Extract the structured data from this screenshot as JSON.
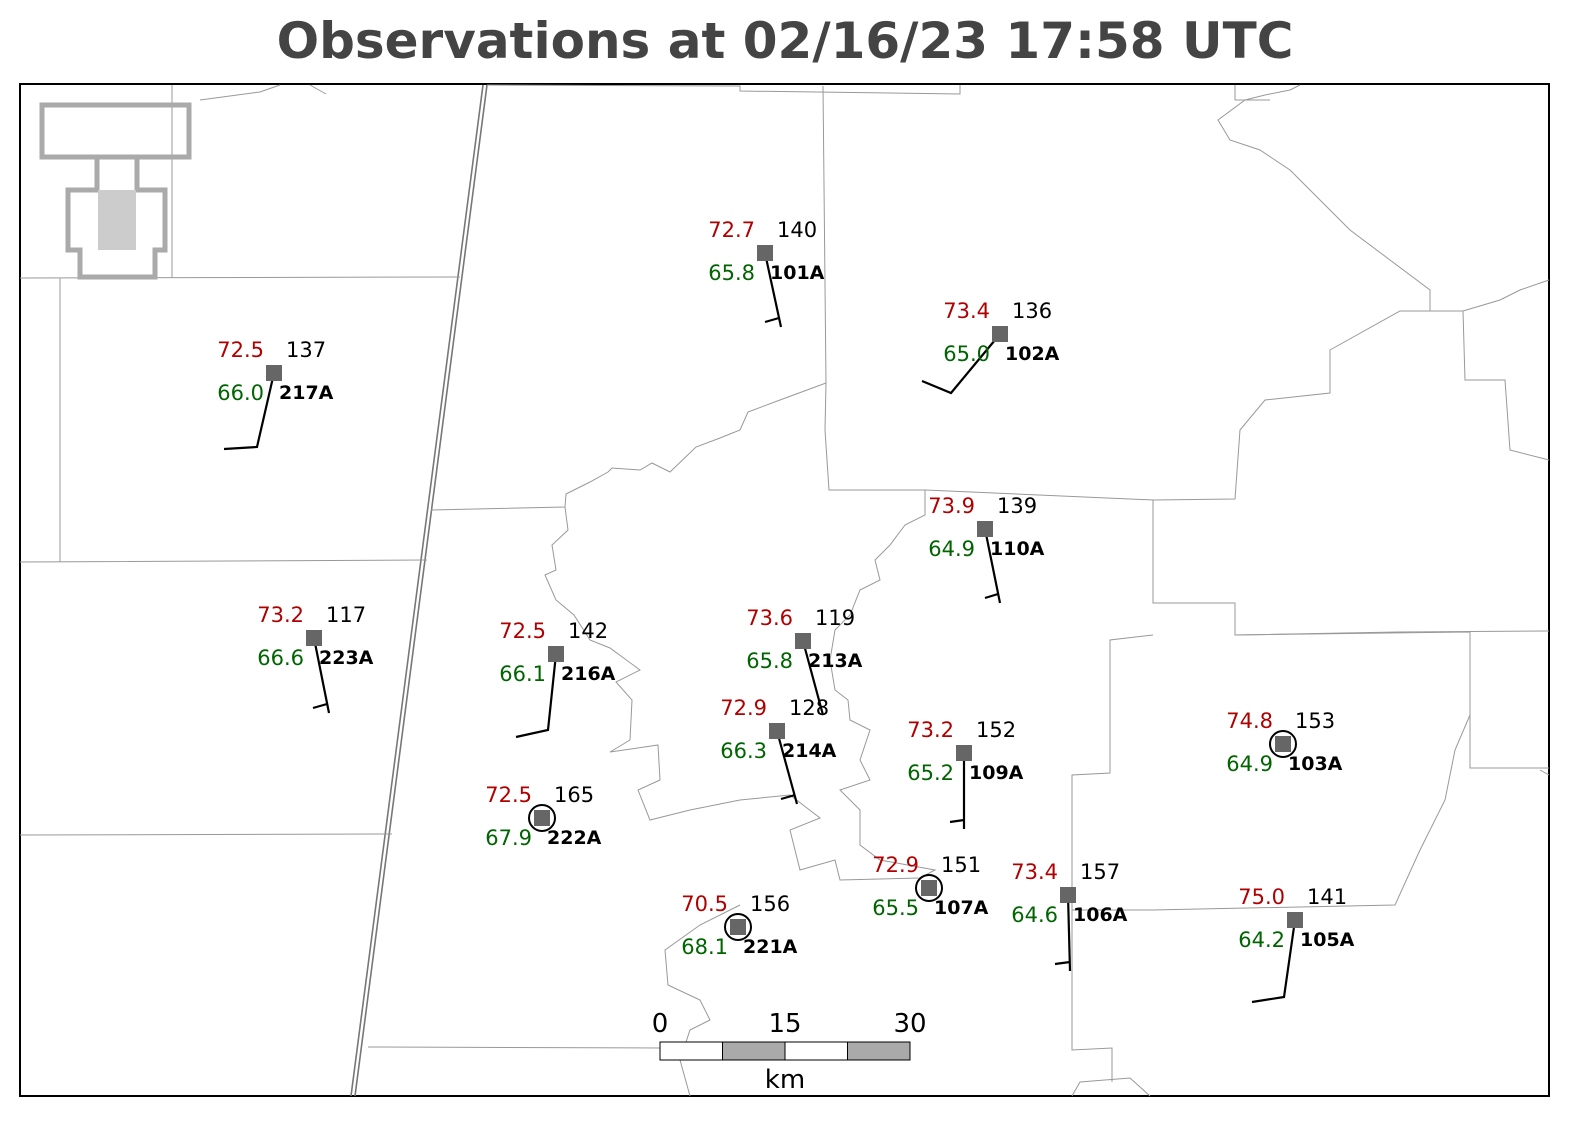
{
  "title": "Observations at 02/16/23 17:58 UTC",
  "stations": [
    {
      "temperature": "72.7",
      "dewpoint": "65.8",
      "pressure": "140",
      "id": "101A"
    },
    {
      "temperature": "73.4",
      "dewpoint": "65.0",
      "pressure": "136",
      "id": "102A"
    },
    {
      "temperature": "72.5",
      "dewpoint": "66.0",
      "pressure": "137",
      "id": "217A"
    },
    {
      "temperature": "73.9",
      "dewpoint": "64.9",
      "pressure": "139",
      "id": "110A"
    },
    {
      "temperature": "73.2",
      "dewpoint": "66.6",
      "pressure": "117",
      "id": "223A"
    },
    {
      "temperature": "72.5",
      "dewpoint": "66.1",
      "pressure": "142",
      "id": "216A"
    },
    {
      "temperature": "73.6",
      "dewpoint": "65.8",
      "pressure": "119",
      "id": "213A"
    },
    {
      "temperature": "72.9",
      "dewpoint": "66.3",
      "pressure": "128",
      "id": "214A"
    },
    {
      "temperature": "73.2",
      "dewpoint": "65.2",
      "pressure": "152",
      "id": "109A"
    },
    {
      "temperature": "74.8",
      "dewpoint": "64.9",
      "pressure": "153",
      "id": "103A"
    },
    {
      "temperature": "72.5",
      "dewpoint": "67.9",
      "pressure": "165",
      "id": "222A"
    },
    {
      "temperature": "72.9",
      "dewpoint": "65.5",
      "pressure": "151",
      "id": "107A"
    },
    {
      "temperature": "73.4",
      "dewpoint": "64.6",
      "pressure": "157",
      "id": "106A"
    },
    {
      "temperature": "70.5",
      "dewpoint": "68.1",
      "pressure": "156",
      "id": "221A"
    },
    {
      "temperature": "75.0",
      "dewpoint": "64.2",
      "pressure": "141",
      "id": "105A"
    }
  ],
  "scale_bar": {
    "labels": [
      "0",
      "15",
      "30"
    ],
    "unit": "km"
  }
}
